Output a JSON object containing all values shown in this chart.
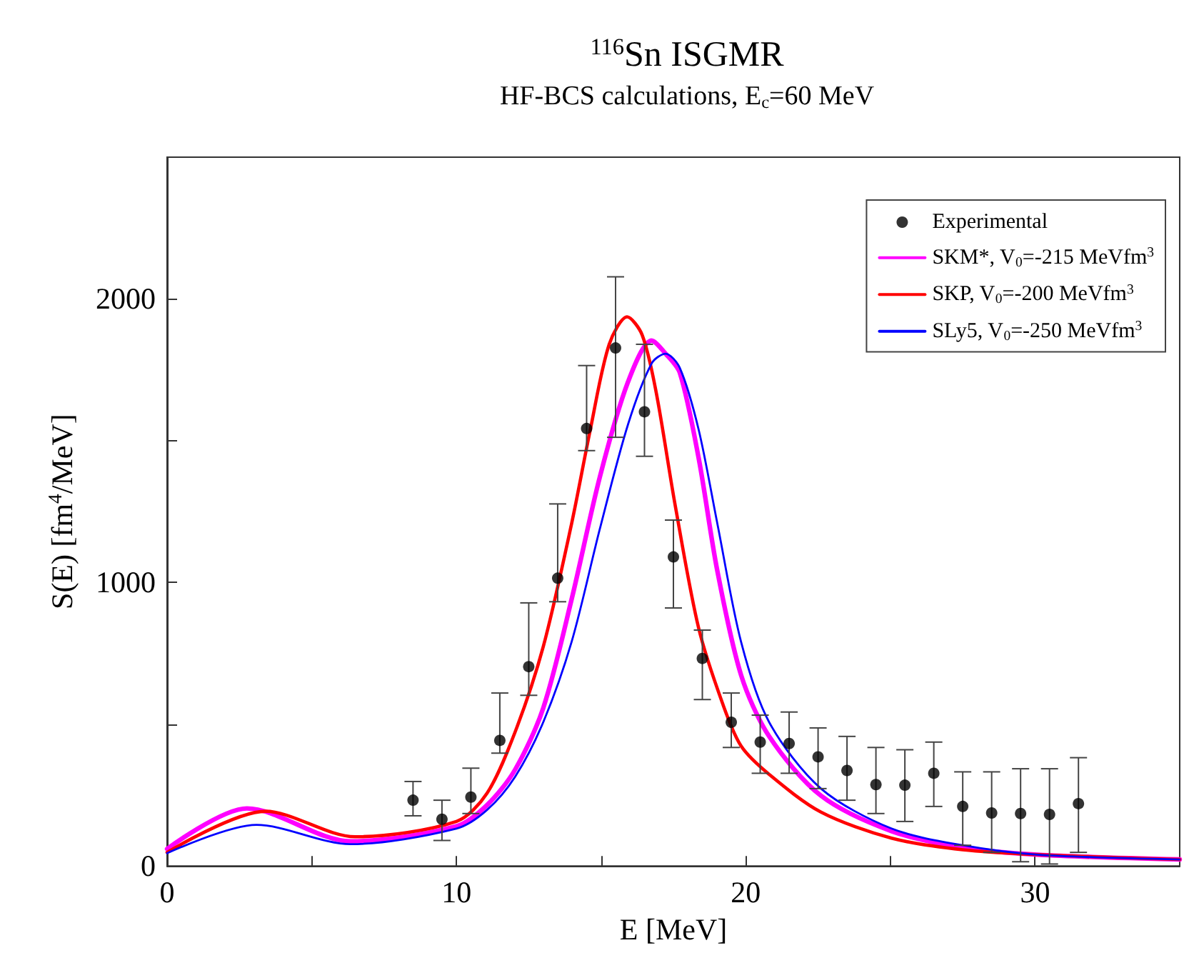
{
  "chart_data": {
    "type": "line",
    "title": "$^{116}$Sn ISGMR",
    "subtitle": "HF-BCS calculations, E$_{c}$=60 MeV",
    "xlabel": "E [MeV]",
    "ylabel": "S(E) [fm$^{4}$/MeV]",
    "xlim": [
      0,
      35
    ],
    "ylim": [
      0,
      2500
    ],
    "xticks": [
      0,
      {
        "value": 5,
        "label": null
      },
      10,
      {
        "value": 15,
        "label": null
      },
      20,
      {
        "value": 25,
        "label": null
      },
      30
    ],
    "yticks": [
      0,
      {
        "value": 500,
        "label": null
      },
      1000,
      {
        "value": 1500,
        "label": null
      },
      2000
    ],
    "legend": "top right",
    "grid": false,
    "series": [
      {
        "type": "scatter",
        "name": "Experimental",
        "color": "#000000",
        "marker": "circle",
        "x": [
          8.5,
          9.5,
          10.5,
          11.5,
          12.5,
          13.5,
          14.5,
          15.5,
          16.5,
          17.5,
          18.5,
          19.5,
          20.5,
          21.5,
          22.5,
          23.5,
          24.5,
          25.5,
          26.5,
          27.5,
          28.5,
          29.5,
          30.5,
          31.5
        ],
        "values": [
          232,
          165,
          243,
          443,
          703,
          1015,
          1543,
          1827,
          1602,
          1090,
          732,
          507,
          437,
          432,
          385,
          337,
          287,
          285,
          327,
          210,
          187,
          185,
          182,
          220
        ],
        "errors": [
          [
            177,
            298
          ],
          [
            90,
            232
          ],
          [
            185,
            345
          ],
          [
            398,
            610
          ],
          [
            602,
            928
          ],
          [
            932,
            1277
          ],
          [
            1465,
            1765
          ],
          [
            1512,
            2078
          ],
          [
            1445,
            1840
          ],
          [
            910,
            1220
          ],
          [
            587,
            832
          ],
          [
            418,
            610
          ],
          [
            327,
            532
          ],
          [
            327,
            543
          ],
          [
            273,
            487
          ],
          [
            232,
            457
          ],
          [
            185,
            418
          ],
          [
            157,
            410
          ],
          [
            210,
            437
          ],
          [
            73,
            332
          ],
          [
            48,
            332
          ],
          [
            15,
            343
          ],
          [
            7,
            343
          ],
          [
            48,
            382
          ]
        ]
      },
      {
        "name": "SKM*, V$_{0}$=-215 MeVfm$^{3}$",
        "color": "#ff00ff",
        "marker": "none",
        "line_style": "solid",
        "x": [
          0,
          2.76,
          6.34,
          10,
          11.06,
          12.03,
          13,
          13.98,
          14.96,
          15.93,
          16.75,
          17.23,
          17.72,
          18.37,
          19.02,
          19.84,
          20.81,
          22.6,
          25.04,
          27.5,
          30.08,
          35
        ],
        "values": [
          60,
          203,
          87,
          140,
          215,
          340,
          557,
          940,
          1373,
          1707,
          1853,
          1807,
          1740,
          1440,
          1040,
          673,
          457,
          248,
          123,
          65,
          40,
          23
        ]
      },
      {
        "name": "SKP, V$_{0}$=-200 MeVfm$^{3}$",
        "color": "#ff0000",
        "marker": "none",
        "line_style": "solid",
        "x": [
          0,
          3.4,
          6.5,
          10,
          11.06,
          12.03,
          13,
          13.98,
          14.63,
          15.28,
          15.9,
          16.42,
          16.9,
          17.56,
          18.37,
          19.2,
          19.84,
          20.81,
          22.6,
          25.04,
          27.5,
          30.08,
          35
        ],
        "values": [
          48,
          193,
          103,
          157,
          257,
          473,
          773,
          1207,
          1540,
          1840,
          1937,
          1873,
          1673,
          1273,
          840,
          573,
          423,
          323,
          190,
          98,
          57,
          40,
          23
        ]
      },
      {
        "name": "SLy5, V$_{0}$=-250 MeVfm$^{3}$",
        "color": "#0000ff",
        "marker": "none",
        "line_style": "solid",
        "x": [
          0,
          3.09,
          6.34,
          10,
          11.06,
          12.03,
          13,
          13.98,
          14.96,
          15.93,
          16.75,
          17.23,
          17.72,
          18.37,
          19.02,
          19.84,
          20.81,
          22.6,
          25.04,
          27.5,
          30.08,
          35
        ],
        "values": [
          45,
          145,
          77,
          132,
          198,
          315,
          507,
          790,
          1190,
          1557,
          1773,
          1807,
          1757,
          1540,
          1207,
          790,
          507,
          273,
          132,
          73,
          40,
          23
        ]
      }
    ]
  }
}
